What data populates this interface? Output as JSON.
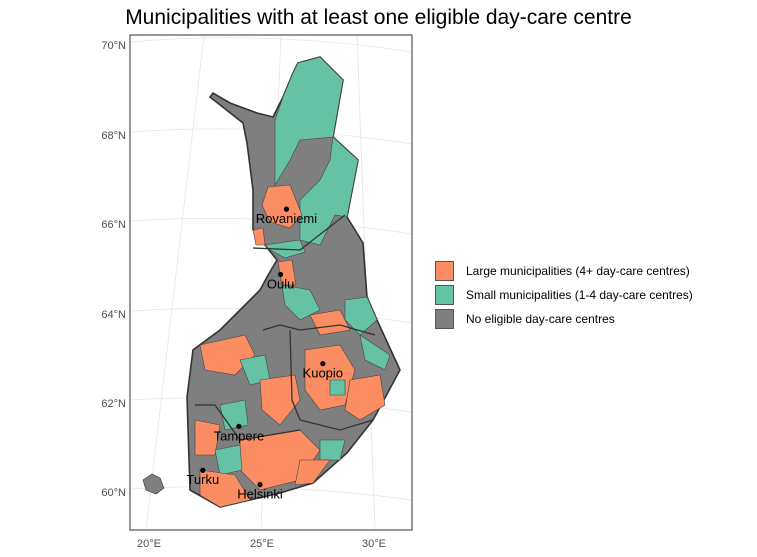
{
  "chart_data": {
    "type": "map",
    "title": "Municipalities with at least one eligible day-care centre",
    "x_ticks": [
      "20°E",
      "25°E",
      "30°E"
    ],
    "x_tick_values": [
      20,
      25,
      30
    ],
    "y_ticks": [
      "70°N",
      "68°N",
      "66°N",
      "64°N",
      "62°N",
      "60°N"
    ],
    "y_tick_values": [
      70,
      68,
      66,
      64,
      62,
      60
    ],
    "legend": {
      "placement": "right",
      "entries": [
        {
          "label": "Large municipalities (4+ day-care centres)",
          "color": "#FC8D62"
        },
        {
          "label": "Small municipalities (1-4 day-care centres)",
          "color": "#66C2A5"
        },
        {
          "label": "No eligible day-care centres",
          "color": "#7F7F7F"
        }
      ]
    },
    "cities": [
      {
        "name": "Rovaniemi",
        "lon": 25.7,
        "lat": 66.5
      },
      {
        "name": "Oulu",
        "lon": 25.5,
        "lat": 65.0
      },
      {
        "name": "Kuopio",
        "lon": 27.7,
        "lat": 62.9
      },
      {
        "name": "Tampere",
        "lon": 23.8,
        "lat": 61.5
      },
      {
        "name": "Turku",
        "lon": 22.3,
        "lat": 60.45
      },
      {
        "name": "Helsinki",
        "lon": 24.9,
        "lat": 60.17
      }
    ]
  }
}
